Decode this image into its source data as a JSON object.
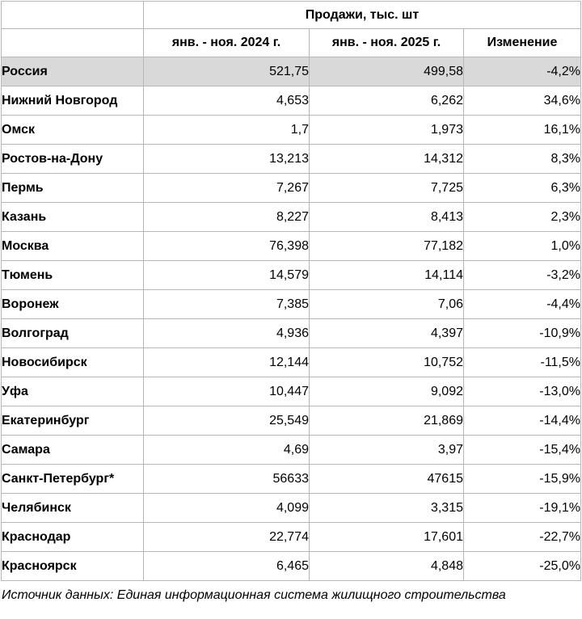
{
  "chart_data": {
    "type": "table",
    "title": "Продажи, тыс. шт",
    "columns": [
      "янв. - ноя. 2024 г.",
      "янв. - ноя. 2025 г.",
      "Изменение"
    ],
    "rows": [
      {
        "city": "Россия",
        "v2024": "521,75",
        "v2025": "499,58",
        "change": "-4,2%",
        "highlight": true
      },
      {
        "city": "Нижний Новгород",
        "v2024": "4,653",
        "v2025": "6,262",
        "change": "34,6%",
        "highlight": false
      },
      {
        "city": "Омск",
        "v2024": "1,7",
        "v2025": "1,973",
        "change": "16,1%",
        "highlight": false
      },
      {
        "city": "Ростов-на-Дону",
        "v2024": "13,213",
        "v2025": "14,312",
        "change": "8,3%",
        "highlight": false
      },
      {
        "city": "Пермь",
        "v2024": "7,267",
        "v2025": "7,725",
        "change": "6,3%",
        "highlight": false
      },
      {
        "city": "Казань",
        "v2024": "8,227",
        "v2025": "8,413",
        "change": "2,3%",
        "highlight": false
      },
      {
        "city": "Москва",
        "v2024": "76,398",
        "v2025": "77,182",
        "change": "1,0%",
        "highlight": false
      },
      {
        "city": "Тюмень",
        "v2024": "14,579",
        "v2025": "14,114",
        "change": "-3,2%",
        "highlight": false
      },
      {
        "city": "Воронеж",
        "v2024": "7,385",
        "v2025": "7,06",
        "change": "-4,4%",
        "highlight": false
      },
      {
        "city": "Волгоград",
        "v2024": "4,936",
        "v2025": "4,397",
        "change": "-10,9%",
        "highlight": false
      },
      {
        "city": "Новосибирск",
        "v2024": "12,144",
        "v2025": "10,752",
        "change": "-11,5%",
        "highlight": false
      },
      {
        "city": "Уфа",
        "v2024": "10,447",
        "v2025": "9,092",
        "change": "-13,0%",
        "highlight": false
      },
      {
        "city": "Екатеринбург",
        "v2024": "25,549",
        "v2025": "21,869",
        "change": "-14,4%",
        "highlight": false
      },
      {
        "city": "Самара",
        "v2024": "4,69",
        "v2025": "3,97",
        "change": "-15,4%",
        "highlight": false
      },
      {
        "city": "Санкт-Петербург*",
        "v2024": "56633",
        "v2025": "47615",
        "change": "-15,9%",
        "highlight": false
      },
      {
        "city": "Челябинск",
        "v2024": "4,099",
        "v2025": "3,315",
        "change": "-19,1%",
        "highlight": false
      },
      {
        "city": "Краснодар",
        "v2024": "22,774",
        "v2025": "17,601",
        "change": "-22,7%",
        "highlight": false
      },
      {
        "city": "Красноярск",
        "v2024": "6,465",
        "v2025": "4,848",
        "change": "-25,0%",
        "highlight": false
      }
    ]
  },
  "footer": {
    "source_note": "Источник данных: Единая информационная система жилищного строительства"
  },
  "colors": {
    "highlight_row_bg": "#d9d9d9",
    "grid_border": "#b7b7b7",
    "text": "#000000",
    "background": "#ffffff"
  }
}
